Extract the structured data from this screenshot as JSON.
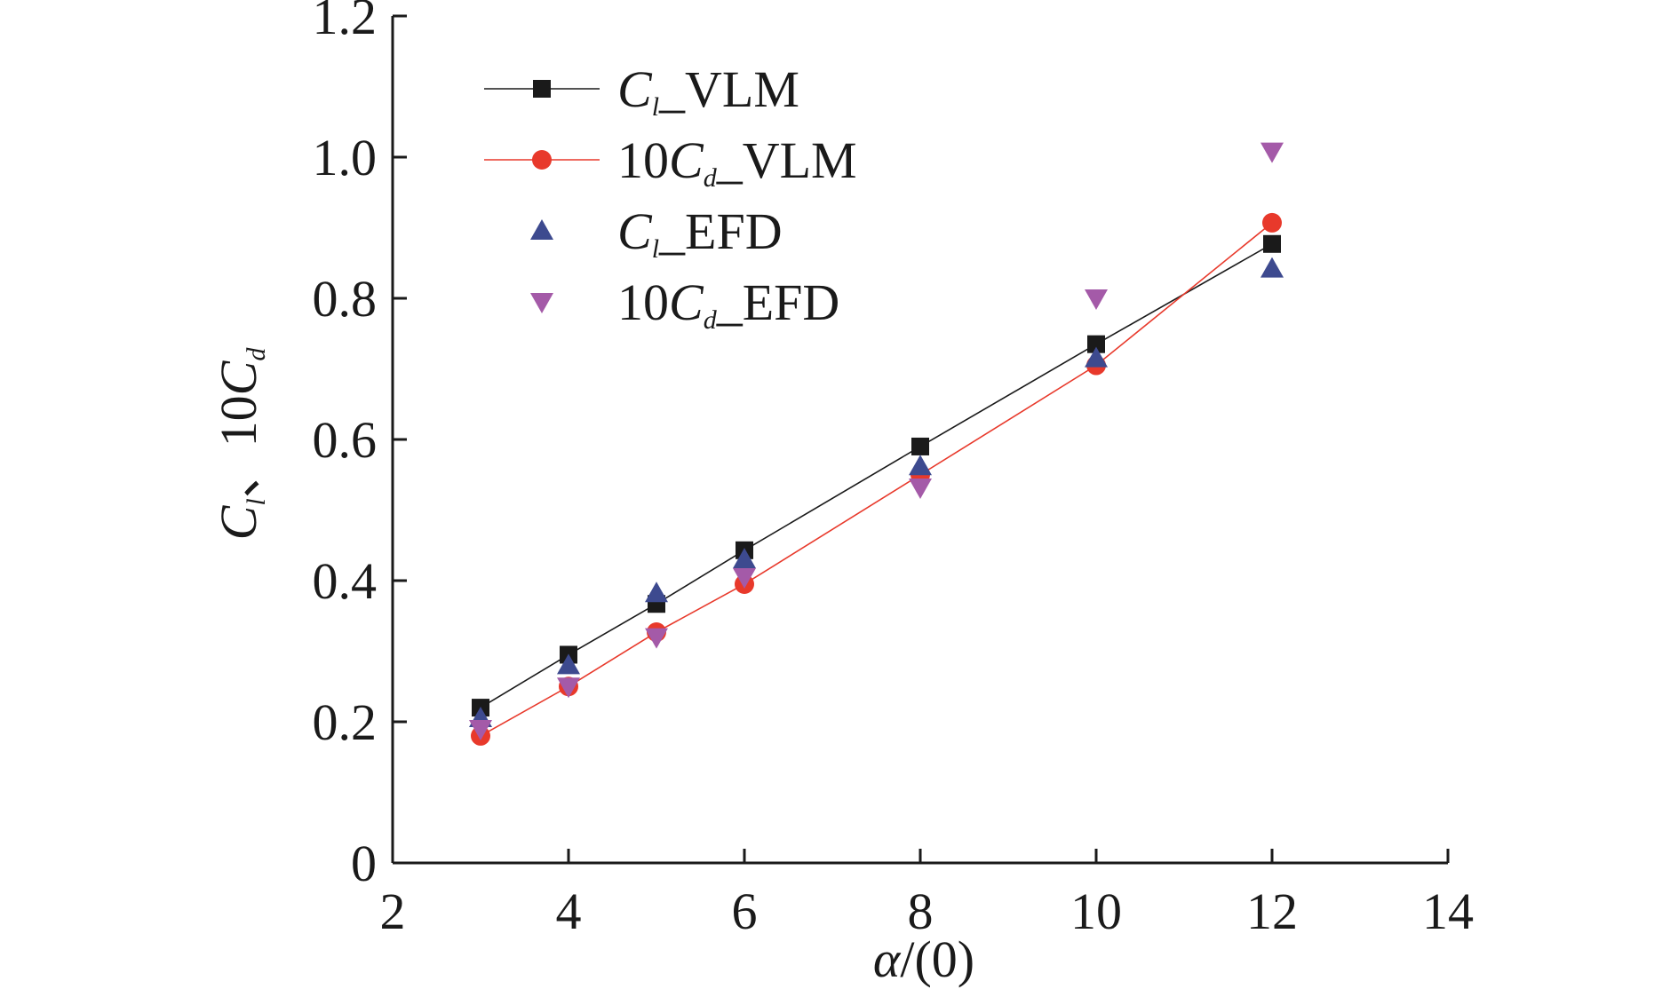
{
  "chart_data": {
    "type": "scatter",
    "title": "",
    "xlabel": "α/(0)",
    "xlabel_parts": {
      "symbol": "α",
      "rest": "/(0)"
    },
    "ylabel": "Cl、10Cd",
    "ylabel_parts": {
      "c1": "C",
      "s1": "l",
      "mid": "、10",
      "c2": "C",
      "s2": "d"
    },
    "xlim": [
      2,
      14
    ],
    "ylim": [
      0,
      1.2
    ],
    "xticks": [
      2,
      4,
      6,
      8,
      10,
      12,
      14
    ],
    "yticks": [
      0,
      0.2,
      0.4,
      0.6,
      0.8,
      1.0,
      1.2
    ],
    "xtick_labels": [
      "2",
      "4",
      "6",
      "8",
      "10",
      "12",
      "14"
    ],
    "ytick_labels": [
      "0",
      "0.2",
      "0.4",
      "0.6",
      "0.8",
      "1.0",
      "1.2"
    ],
    "grid": false,
    "legend_position": "top-left",
    "series": [
      {
        "name": "Cl_VLM",
        "label": {
          "prefix": "",
          "c": "C",
          "sub": "l",
          "suffix": "_VLM"
        },
        "marker": "square",
        "color": "#1a1a1a",
        "line": true,
        "line_color": "#1a1a1a",
        "x": [
          3,
          4,
          5,
          6,
          8,
          10,
          12
        ],
        "y": [
          0.22,
          0.295,
          0.367,
          0.443,
          0.59,
          0.735,
          0.877
        ]
      },
      {
        "name": "10Cd_VLM",
        "label": {
          "prefix": "10",
          "c": "C",
          "sub": "d",
          "suffix": "_VLM"
        },
        "marker": "circle",
        "color": "#e8392b",
        "line": true,
        "line_color": "#e8392b",
        "x": [
          3,
          4,
          5,
          6,
          8,
          10,
          12
        ],
        "y": [
          0.18,
          0.25,
          0.327,
          0.395,
          0.55,
          0.705,
          0.907
        ]
      },
      {
        "name": "Cl_EFD",
        "label": {
          "prefix": "",
          "c": "C",
          "sub": "l",
          "suffix": "_EFD"
        },
        "marker": "triangle-up",
        "color": "#3d4a8f",
        "line": false,
        "x": [
          3,
          4,
          5,
          6,
          8,
          10,
          12
        ],
        "y": [
          0.205,
          0.28,
          0.382,
          0.43,
          0.562,
          0.715,
          0.842
        ]
      },
      {
        "name": "10Cd_EFD",
        "label": {
          "prefix": "10",
          "c": "C",
          "sub": "d",
          "suffix": "_EFD"
        },
        "marker": "triangle-down",
        "color": "#a45aa8",
        "line": false,
        "x": [
          3,
          4,
          5,
          6,
          8,
          10,
          12
        ],
        "y": [
          0.19,
          0.25,
          0.32,
          0.405,
          0.532,
          0.8,
          1.008
        ]
      }
    ]
  }
}
